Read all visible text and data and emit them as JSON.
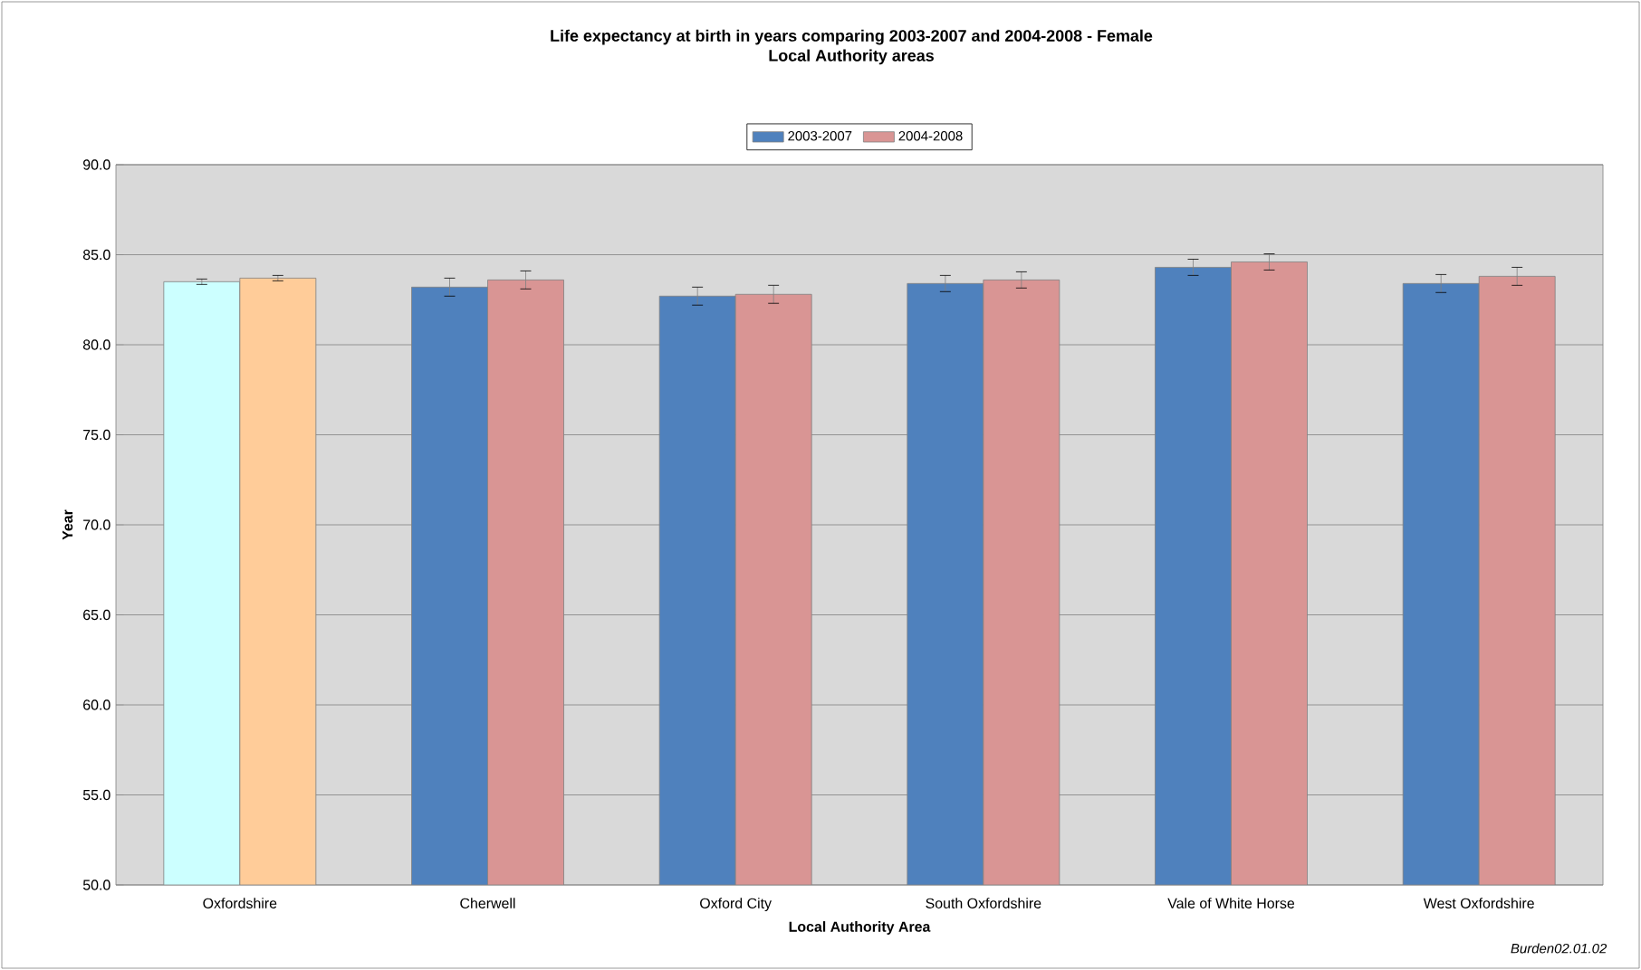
{
  "chart_data": {
    "type": "bar",
    "title": "Life expectancy at birth in years comparing 2003-2007 and 2004-2008 - Female",
    "subtitle": "Local Authority areas",
    "xlabel": "Local Authority Area",
    "ylabel": "Year",
    "categories": [
      "Oxfordshire",
      "Cherwell",
      "Oxford City",
      "South Oxfordshire",
      "Vale of White Horse",
      "West Oxfordshire"
    ],
    "series": [
      {
        "name": "2003-2007",
        "color": "#4f81bd",
        "colors": [
          "#ccffff",
          "#4f81bd",
          "#4f81bd",
          "#4f81bd",
          "#4f81bd",
          "#4f81bd"
        ],
        "values": [
          83.5,
          83.2,
          82.7,
          83.4,
          84.3,
          83.4
        ],
        "errors": [
          0.15,
          0.5,
          0.5,
          0.45,
          0.45,
          0.5
        ]
      },
      {
        "name": "2004-2008",
        "color": "#d99594",
        "colors": [
          "#ffcc99",
          "#d99594",
          "#d99594",
          "#d99594",
          "#d99594",
          "#d99594"
        ],
        "values": [
          83.7,
          83.6,
          82.8,
          83.6,
          84.6,
          83.8
        ],
        "errors": [
          0.15,
          0.5,
          0.5,
          0.45,
          0.45,
          0.5
        ]
      }
    ],
    "ylim": [
      50,
      90
    ],
    "yticks": [
      {
        "value": 50,
        "label": "50.0"
      },
      {
        "value": 55,
        "label": "55.0"
      },
      {
        "value": 60,
        "label": "60.0"
      },
      {
        "value": 65,
        "label": "65.0"
      },
      {
        "value": 70,
        "label": "70.0"
      },
      {
        "value": 75,
        "label": "75.0"
      },
      {
        "value": 80,
        "label": "80.0"
      },
      {
        "value": 85,
        "label": "85.0"
      },
      {
        "value": 90,
        "label": "90.0"
      }
    ],
    "grid": "y",
    "legend": "top",
    "annotations": [
      "Burden02.01.02"
    ]
  }
}
